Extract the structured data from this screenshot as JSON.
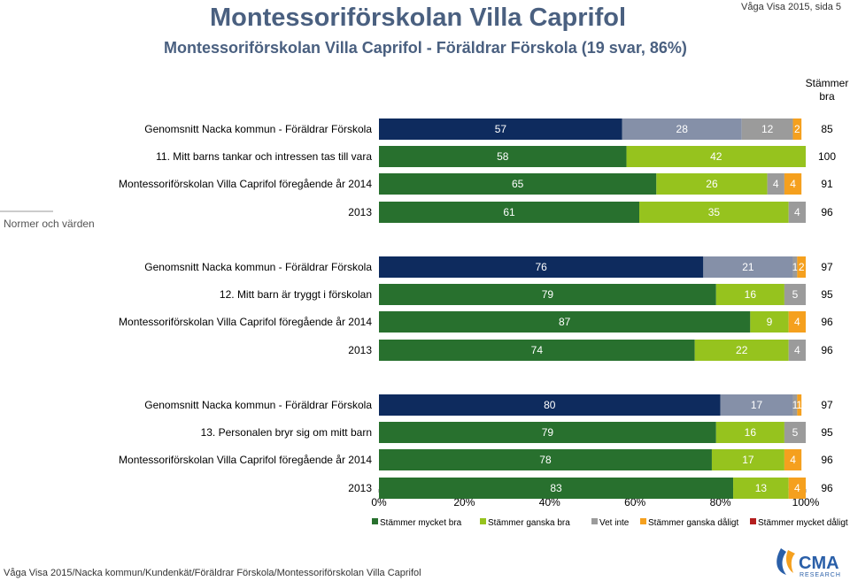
{
  "header": {
    "title": "Montessoriförskolan Villa Caprifol",
    "subtitle": "Montessoriförskolan Villa Caprifol - Föräldrar Förskola (19 svar, 86%)",
    "corner": "Våga Visa 2015, sida 5"
  },
  "footer": {
    "path": "Våga Visa 2015/Nacka kommun/Kundenkät/Föräldrar Förskola/Montessoriförskolan Villa Caprifol"
  },
  "logo": {
    "text": "CMA",
    "subtext": "RESEARCH"
  },
  "colors": {
    "Stämmer mycket bra": "#28702e",
    "Stämmer ganska bra": "#96c31e",
    "Vet inte": "#9b9b9b",
    "Stämmer ganska dåligt": "#f5a01e",
    "Stämmer mycket dåligt": "#b41e1e",
    "Stämmer mycket bra (Nacka)": "#0e2b5e",
    "Stämmer ganska bra (Nacka)": "#8590a8"
  },
  "chart_data": {
    "type": "bar",
    "orientation": "horizontal",
    "stacked": "percent",
    "group_label": "Normer och värden",
    "score_header": "Stämmer bra",
    "xlim": [
      0,
      100
    ],
    "x_ticks": [
      "0%",
      "20%",
      "40%",
      "60%",
      "80%",
      "100%"
    ],
    "series_names": [
      "Stämmer mycket bra",
      "Stämmer ganska bra",
      "Vet inte",
      "Stämmer ganska dåligt",
      "Stämmer mycket dåligt"
    ],
    "legend_position": "bottom",
    "groups": [
      {
        "question": "11. Mitt barns tankar och intressen tas till vara",
        "rows": [
          {
            "label": "Genomsnitt Nacka kommun - Föräldrar Förskola",
            "benchmark": true,
            "values": [
              57,
              28,
              12,
              2,
              0
            ],
            "score": "85"
          },
          {
            "label": "11. Mitt barns tankar och intressen tas till vara",
            "values": [
              58,
              42,
              0,
              0,
              0
            ],
            "score": "100"
          },
          {
            "label": "Montessoriförskolan Villa Caprifol föregående år 2014",
            "values": [
              65,
              26,
              4,
              4,
              0
            ],
            "score": "91"
          },
          {
            "label": "2013",
            "values": [
              61,
              35,
              4,
              0,
              0
            ],
            "score": "96"
          }
        ]
      },
      {
        "question": "12. Mitt barn är tryggt i förskolan",
        "rows": [
          {
            "label": "Genomsnitt Nacka kommun - Föräldrar Förskola",
            "benchmark": true,
            "values": [
              76,
              21,
              1,
              2,
              0
            ],
            "score": "97"
          },
          {
            "label": "12. Mitt barn är tryggt i förskolan",
            "values": [
              79,
              16,
              5,
              0,
              0
            ],
            "score": "95"
          },
          {
            "label": "Montessoriförskolan Villa Caprifol föregående år 2014",
            "values": [
              87,
              9,
              0,
              4,
              0
            ],
            "score": "96"
          },
          {
            "label": "2013",
            "values": [
              74,
              22,
              4,
              0,
              0
            ],
            "score": "96"
          }
        ]
      },
      {
        "question": "13. Personalen bryr sig om mitt barn",
        "rows": [
          {
            "label": "Genomsnitt Nacka kommun - Föräldrar Förskola",
            "benchmark": true,
            "values": [
              80,
              17,
              1,
              1,
              0
            ],
            "score": "97"
          },
          {
            "label": "13. Personalen bryr sig om mitt barn",
            "values": [
              79,
              16,
              5,
              0,
              0
            ],
            "score": "95"
          },
          {
            "label": "Montessoriförskolan Villa Caprifol föregående år 2014",
            "values": [
              78,
              17,
              0,
              4,
              0
            ],
            "score": "96"
          },
          {
            "label": "2013",
            "values": [
              83,
              13,
              0,
              4,
              0
            ],
            "score": "96"
          }
        ]
      }
    ]
  }
}
